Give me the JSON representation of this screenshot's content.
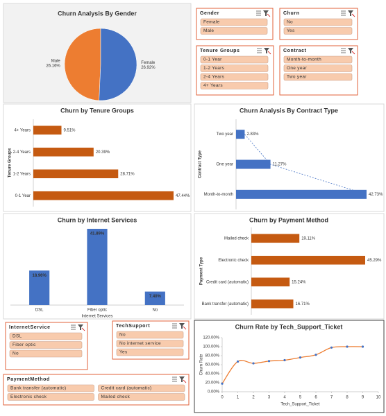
{
  "chart_data": [
    {
      "type": "pie",
      "title": "Churn Analysis By Gender",
      "title_color": "#1f3864",
      "categories": [
        "Male",
        "Female"
      ],
      "values": [
        26.16,
        26.92
      ],
      "value_labels": [
        "26.16%",
        "26.92%"
      ],
      "colors": [
        "#ed7d31",
        "#4472c4"
      ]
    },
    {
      "type": "hbar",
      "title": "Churn by Tenure Groups",
      "title_color": "#c55a11",
      "y_label": "Tenure Groups",
      "categories": [
        "0-1 Year",
        "1-2 Years",
        "2-4 Years",
        "4+ Years"
      ],
      "values": [
        47.44,
        28.71,
        20.39,
        9.51
      ],
      "value_labels": [
        "47.44%",
        "28.71%",
        "20.39%",
        "9.51%"
      ],
      "color": "#c55a11"
    },
    {
      "type": "hbar",
      "title": "Churn Analysis By Contract Type",
      "title_color": "#1f3864",
      "y_label": "Contract Type",
      "categories": [
        "Month-to-month",
        "One year",
        "Two year"
      ],
      "values": [
        42.73,
        11.27,
        2.83
      ],
      "value_labels": [
        "42.73%",
        "11.27%",
        "2.83%"
      ],
      "color": "#4472c4",
      "trendline": true
    },
    {
      "type": "bar",
      "title": "Churn by Internet Services",
      "title_color": "#222222",
      "x_label": "Internet Services",
      "categories": [
        "DSL",
        "Fiber optic",
        "No"
      ],
      "values": [
        18.96,
        41.89,
        7.4
      ],
      "value_labels": [
        "18.96%",
        "41.89%",
        "7.40%"
      ],
      "color": "#4472c4"
    },
    {
      "type": "hbar",
      "title": "Churn by Payment Method",
      "title_color": "#222222",
      "y_label": "Payment Type",
      "categories": [
        "Bank transfer (automatic)",
        "Credit card (automatic)",
        "Electronic check",
        "Mailed check"
      ],
      "values": [
        16.71,
        15.24,
        45.29,
        19.11
      ],
      "value_labels": [
        "16.71%",
        "15.24%",
        "45.29%",
        "19.11%"
      ],
      "color": "#c55a11"
    },
    {
      "type": "line",
      "title": "Churn Rate by Tech_Support_Ticket",
      "title_color": "#c55a11",
      "x_label": "Tech_Support_Ticket",
      "y_label": "Churn Rate",
      "x": [
        0,
        1,
        2,
        3,
        4,
        5,
        6,
        7,
        8,
        9
      ],
      "values": [
        18,
        67,
        63,
        68,
        70,
        76,
        82,
        98,
        100,
        100
      ],
      "line_color": "#ed7d31",
      "marker_color": "#4472c4",
      "xlim": [
        0,
        10
      ],
      "xticks": [
        0,
        1,
        2,
        3,
        4,
        5,
        6,
        7,
        8,
        9,
        10
      ],
      "ylim": [
        0,
        120
      ],
      "yticks": [
        {
          "value": 0,
          "label": "0.00%"
        },
        {
          "value": 20,
          "label": "20.00%"
        },
        {
          "value": 40,
          "label": "40.00%"
        },
        {
          "value": 60,
          "label": "60.00%"
        },
        {
          "value": 80,
          "label": "80.00%"
        },
        {
          "value": 100,
          "label": "100.00%"
        },
        {
          "value": 120,
          "label": "120.00%"
        }
      ]
    }
  ],
  "slicers": [
    {
      "title": "Gender",
      "items": [
        "Female",
        "Male"
      ]
    },
    {
      "title": "Churn",
      "items": [
        "No",
        "Yes"
      ]
    },
    {
      "title": "Tenure Groups",
      "items": [
        "0-1 Year",
        "1-2 Years",
        "2-4 Years",
        "4+ Years"
      ]
    },
    {
      "title": "Contract",
      "items": [
        "Month-to-month",
        "One year",
        "Two year"
      ]
    },
    {
      "title": "InternetService",
      "items": [
        "DSL",
        "Fiber optic",
        "No"
      ]
    },
    {
      "title": "TechSupport",
      "items": [
        "No",
        "No internet service",
        "Yes"
      ]
    },
    {
      "title": "PaymentMethod",
      "items": [
        "Bank transfer (automatic)",
        "Credit card (automatic)",
        "Electronic check",
        "Mailed check"
      ]
    }
  ]
}
